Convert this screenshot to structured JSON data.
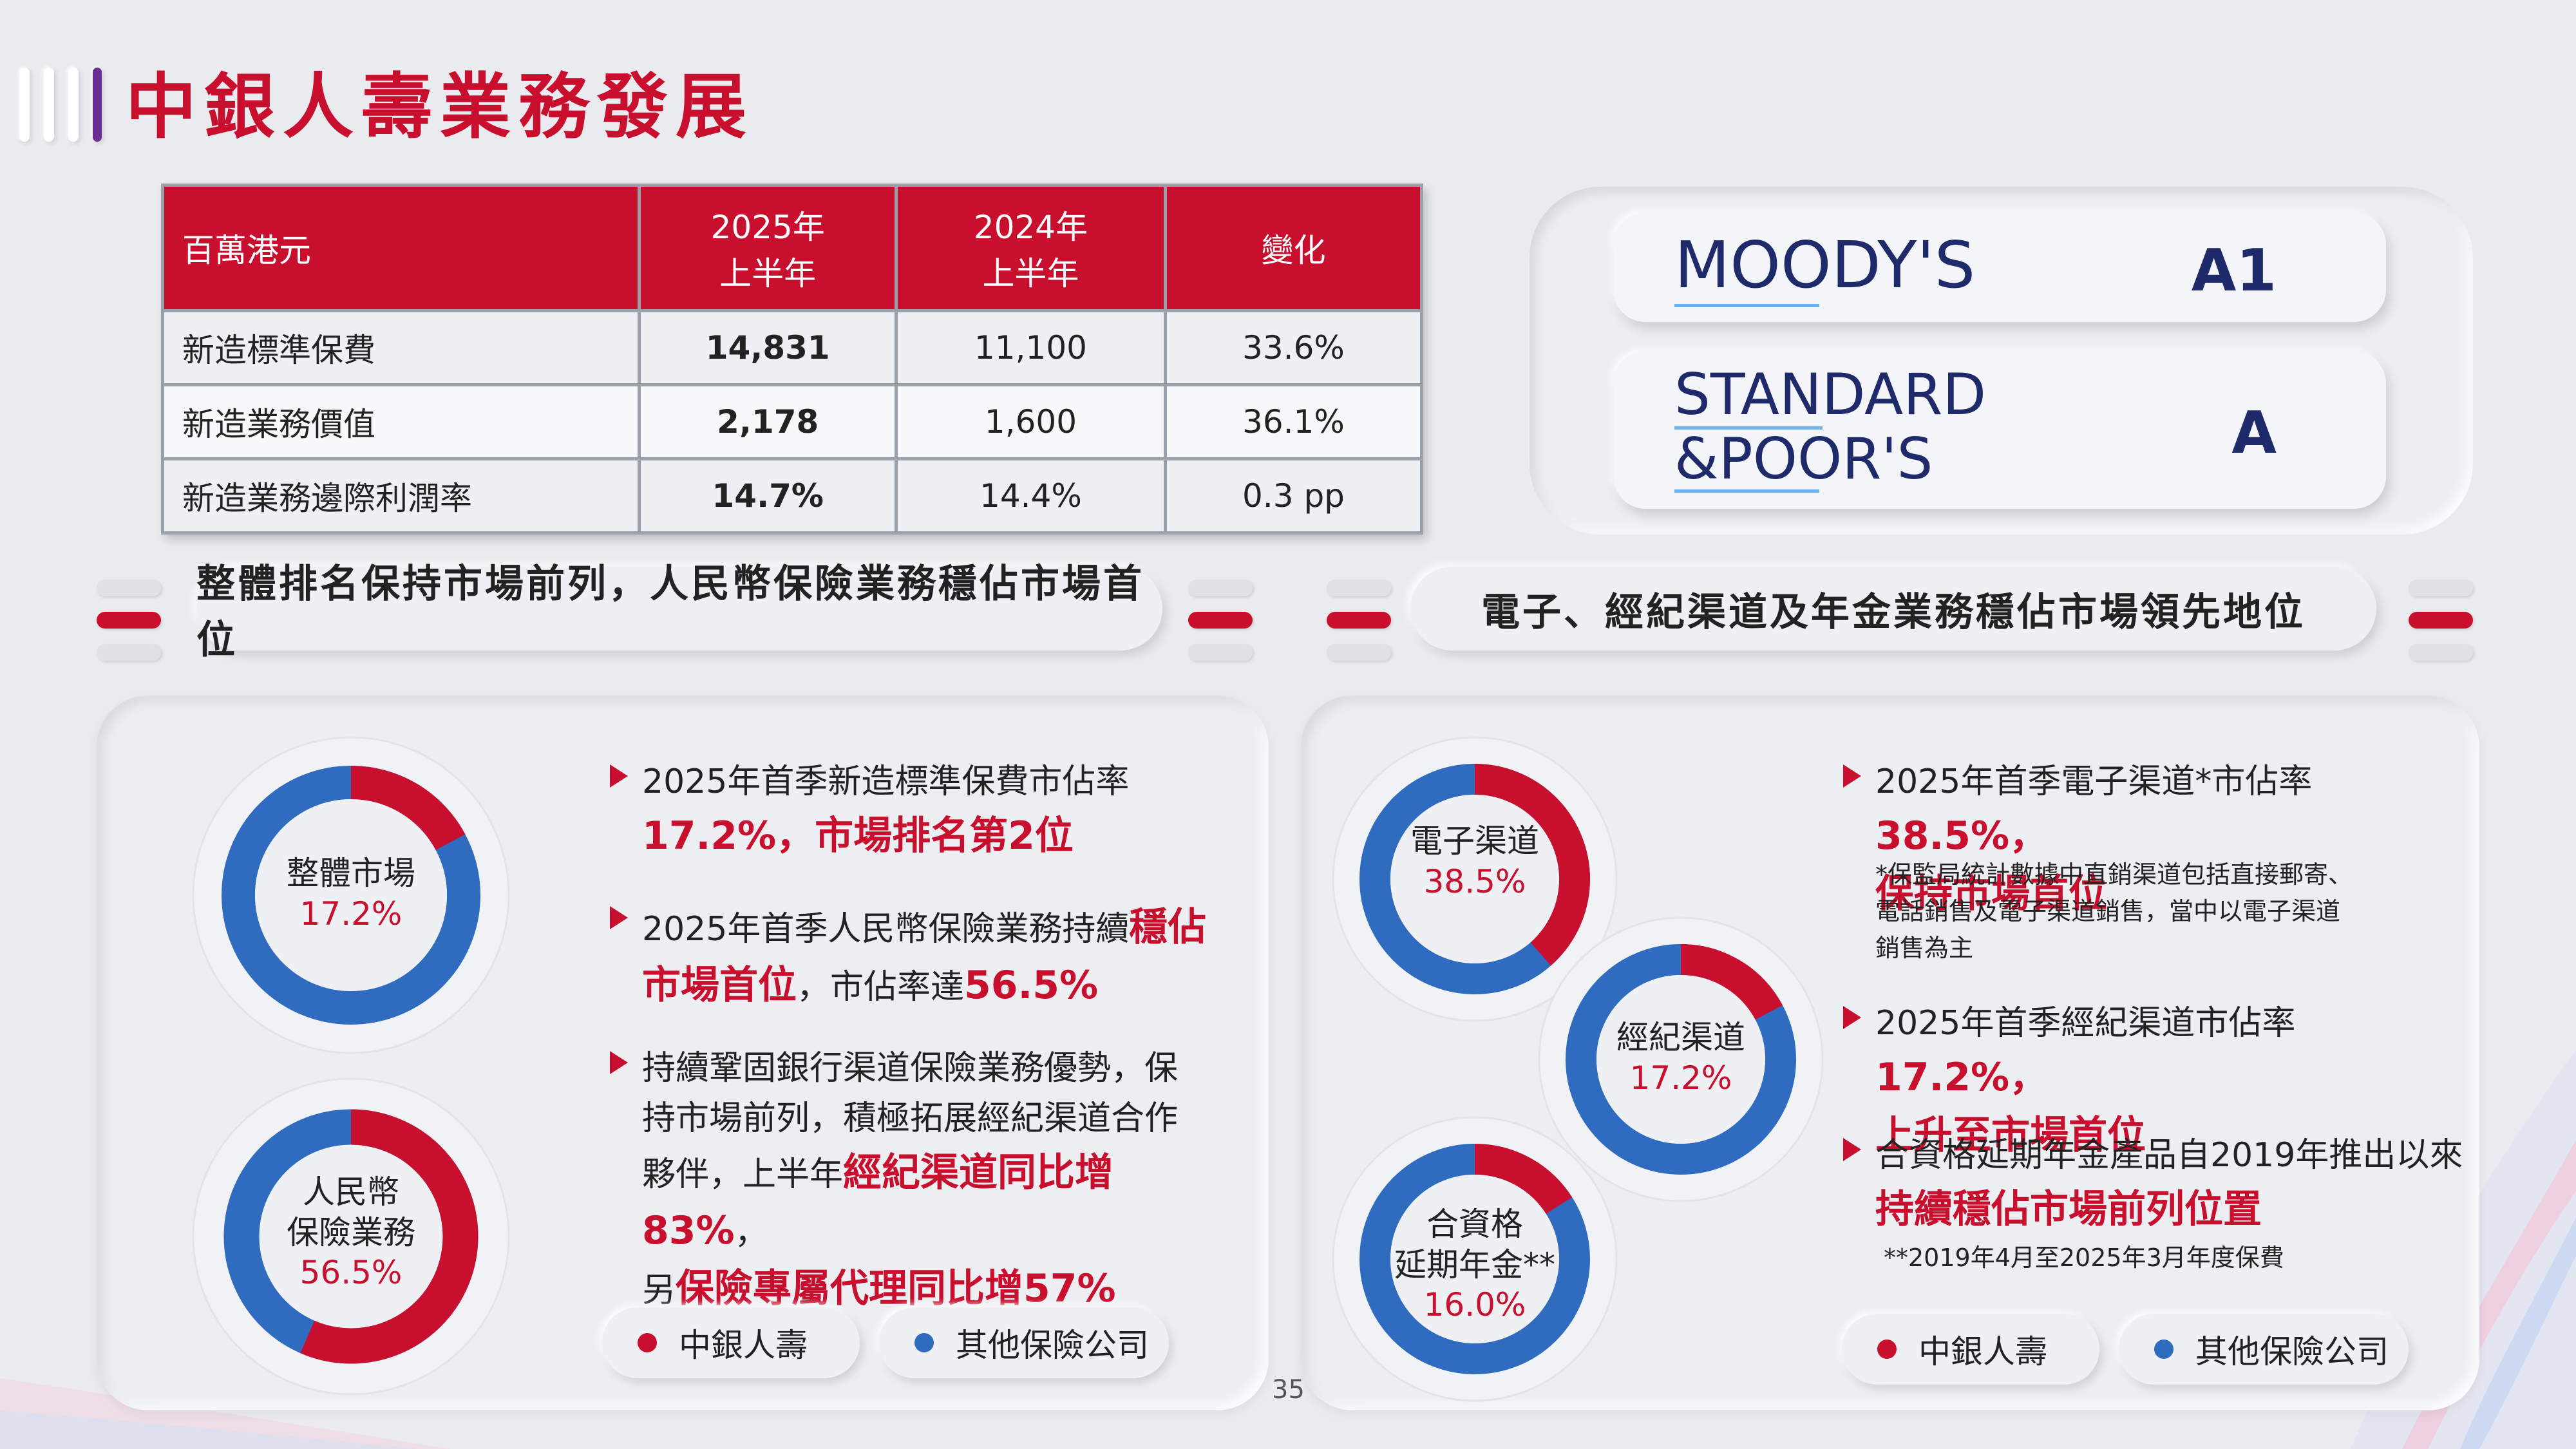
{
  "page": {
    "title": "中銀人壽業務發展",
    "page_number": "35"
  },
  "table": {
    "headers": [
      "百萬港元",
      "2025年\n上半年",
      "2024年\n上半年",
      "變化"
    ],
    "rows": [
      [
        "新造標準保費",
        "14,831",
        "11,100",
        "33.6%"
      ],
      [
        "新造業務價值",
        "2,178",
        "1,600",
        "36.1%"
      ],
      [
        "新造業務邊際利潤率",
        "14.7%",
        "14.4%",
        "0.3 pp"
      ]
    ]
  },
  "ratings": [
    {
      "agency": "MOODY'S",
      "grade": "A1"
    },
    {
      "agency_line1": "STANDARD",
      "agency_line2": "&POOR'S",
      "grade": "A"
    }
  ],
  "sections": {
    "left_header": "整體排名保持市場前列，人民幣保險業務穩佔市場首位",
    "right_header": "電子、經紀渠道及年金業務穩佔市場領先地位"
  },
  "left_donuts": [
    {
      "label": "整體市場",
      "percent_text": "17.2%",
      "share": 17.2
    },
    {
      "label_line1": "人民幣",
      "label_line2": "保險業務",
      "percent_text": "56.5%",
      "share": 56.5
    }
  ],
  "right_donuts": [
    {
      "label": "電子渠道",
      "percent_text": "38.5%",
      "share": 38.5
    },
    {
      "label": "經紀渠道",
      "percent_text": "17.2%",
      "share": 17.2
    },
    {
      "label_line1": "合資格",
      "label_line2": "延期年金**",
      "percent_text": "16.0%",
      "share": 16.0
    }
  ],
  "left_bullets": {
    "b1_text": "2025年首季新造標準保費市佔率",
    "b1_hl": "17.2%，市場排名第2位",
    "b2_text": "2025年首季人民幣保險業務持續",
    "b2_hl1": "穩佔",
    "b2_hl2": "市場首位",
    "b2_text2": "，市佔率達",
    "b2_hl3": "56.5%",
    "b3_line1": "持續鞏固銀行渠道保險業務優勢，保",
    "b3_line2": "持市場前列，積極拓展經紀渠道合作",
    "b3_line3a": "夥伴，上半年",
    "b3_line3b": "經紀渠道同比增83%",
    "b3_line3c": "，",
    "b3_line4a": "另",
    "b3_line4b": "保險專屬代理同比增57%"
  },
  "right_bullets": {
    "b1_text": "2025年首季電子渠道*市佔率",
    "b1_hl1": "38.5%，",
    "b1_hl2": "保持市場首位",
    "b1_note1": "*保監局統計數據中直銷渠道包括直接郵寄、",
    "b1_note2": "電話銷售及電子渠道銷售，當中以電子渠道",
    "b1_note3": "銷售為主",
    "b2_text": "2025年首季經紀渠道市佔率",
    "b2_hl1": "17.2%，",
    "b2_hl2": "上升至市場首位",
    "b3_text": "合資格延期年金產品自2019年推出以來",
    "b3_hl": "持續穩佔市場前列位置",
    "b3_note": "**2019年4月至2025年3月年度保費"
  },
  "legend": {
    "boc": "中銀人壽",
    "others": "其他保險公司",
    "boc_color": "#c8102e",
    "others_color": "#2f6cc0"
  }
}
